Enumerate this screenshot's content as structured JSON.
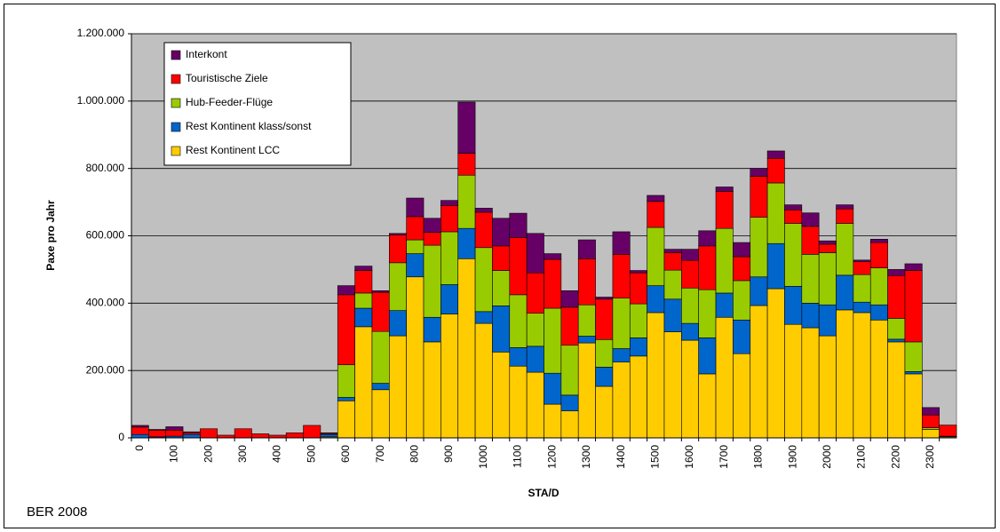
{
  "chart_data": {
    "type": "stacked_bar",
    "y_label": "Paxe pro Jahr",
    "x_label": "STA/D",
    "note": "BER 2008",
    "categories": [
      "0",
      null,
      "100",
      null,
      "200",
      null,
      "300",
      null,
      "400",
      null,
      "500",
      null,
      "600",
      null,
      "700",
      null,
      "800",
      null,
      "900",
      null,
      "1000",
      null,
      "1100",
      null,
      "1200",
      null,
      "1300",
      null,
      "1400",
      null,
      "1500",
      null,
      "1600",
      null,
      "1700",
      null,
      "1800",
      null,
      "1900",
      null,
      "2000",
      null,
      "2100",
      null,
      "2200",
      null,
      "2300",
      null
    ],
    "series": [
      {
        "name": "Rest Kontinent LCC",
        "color": "#FFCC00",
        "values": [
          0,
          0,
          0,
          0,
          0,
          0,
          0,
          0,
          0,
          0,
          0,
          3000,
          110000,
          330000,
          143000,
          303000,
          478000,
          285000,
          368000,
          532000,
          340000,
          255000,
          213000,
          195000,
          100000,
          80000,
          282000,
          153000,
          225000,
          243000,
          372000,
          315000,
          290000,
          190000,
          358000,
          250000,
          393000,
          443000,
          337000,
          327000,
          303000,
          380000,
          372000,
          350000,
          285000,
          190000,
          25000,
          3000
        ]
      },
      {
        "name": "Rest Kontinent klass/sonst",
        "color": "#0066CC",
        "values": [
          10000,
          3000,
          5000,
          10000,
          0,
          0,
          0,
          0,
          0,
          0,
          0,
          7000,
          10000,
          55000,
          19000,
          75000,
          69000,
          73000,
          87000,
          90000,
          35000,
          137000,
          55000,
          77000,
          92000,
          47000,
          20000,
          57000,
          40000,
          54000,
          80000,
          97000,
          50000,
          107000,
          72000,
          100000,
          85000,
          134000,
          113000,
          73000,
          92000,
          103000,
          31000,
          45000,
          8000,
          7000,
          0,
          2000
        ]
      },
      {
        "name": "Hub-Feeder-Flüge",
        "color": "#99CC00",
        "values": [
          0,
          0,
          0,
          0,
          0,
          0,
          0,
          0,
          0,
          0,
          0,
          0,
          97000,
          45000,
          154000,
          142000,
          41000,
          214000,
          157000,
          158000,
          190000,
          105000,
          157000,
          98000,
          193000,
          148000,
          93000,
          82000,
          150000,
          101000,
          173000,
          86000,
          105000,
          143000,
          192000,
          117000,
          177000,
          180000,
          187000,
          145000,
          155000,
          154000,
          82000,
          110000,
          62000,
          88000,
          5000,
          0
        ]
      },
      {
        "name": "Touristische Ziele",
        "color": "#FF0000",
        "values": [
          22000,
          20000,
          18000,
          5000,
          27000,
          8000,
          27000,
          12000,
          8000,
          15000,
          37000,
          3000,
          208000,
          67000,
          116000,
          83000,
          69000,
          38000,
          78000,
          65000,
          105000,
          73000,
          170000,
          120000,
          145000,
          113000,
          137000,
          120000,
          130000,
          92000,
          77000,
          52000,
          82000,
          130000,
          110000,
          71000,
          122000,
          73000,
          40000,
          83000,
          25000,
          43000,
          38000,
          75000,
          127000,
          212000,
          38000,
          33000
        ]
      },
      {
        "name": "Interkont",
        "color": "#660066",
        "values": [
          5000,
          2000,
          10000,
          3000,
          0,
          0,
          0,
          0,
          0,
          0,
          0,
          2000,
          27000,
          13000,
          5000,
          4000,
          55000,
          42000,
          15000,
          152000,
          12000,
          82000,
          72000,
          117000,
          17000,
          49000,
          56000,
          6000,
          67000,
          7000,
          18000,
          10000,
          33000,
          45000,
          13000,
          42000,
          23000,
          22000,
          15000,
          40000,
          10000,
          12000,
          5000,
          10000,
          18000,
          20000,
          22000,
          0
        ]
      }
    ],
    "ylim": [
      0,
      1200000
    ],
    "yticks": [
      0,
      {
        "value": 200000,
        "label": "200.000"
      },
      {
        "value": 400000,
        "label": "400.000"
      },
      {
        "value": 600000,
        "label": "600.000"
      },
      {
        "value": 800000,
        "label": "800.000"
      },
      {
        "value": 1000000,
        "label": "1.000.000"
      },
      {
        "value": 1200000,
        "label": "1.200.000"
      }
    ],
    "grid": true,
    "legend": "upper left"
  }
}
